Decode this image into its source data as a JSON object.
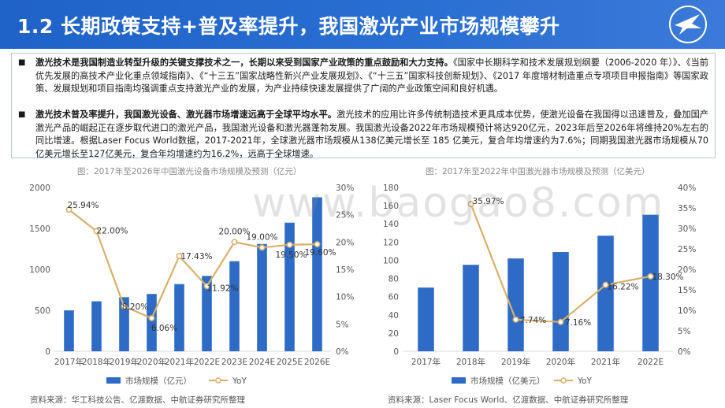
{
  "header": {
    "title": "1.2 长期政策支持+普及率提升，我国激光产业市场规模攀升",
    "logo_text": "AVIC"
  },
  "text": {
    "p1_bold": "激光技术是我国制造业转型升级的关键支撑技术之一，长期以来受到国家产业政策的重点鼓励和大力支持。",
    "p1_rest": "《国家中长期科学和技术发展规划纲要（2006-2020 年）》、《当前优先发展的高技术产业化重点领域指南》、《“十三五”国家战略性新兴产业发展规划》、《“十三五”国家科技创新规划》、《2017 年度增材制造重点专项项目申报指南》等国家政策、发展规划和项目指南均强调重点支持激光产业的发展，为产业持续快速发展提供了广阔的产业政策空间和良好机遇。",
    "p2_bold": "激光技术普及率提升，我国激光设备、激光器市场增速远高于全球平均水平。",
    "p2_rest": "激光技术的应用比许多传统制造技术更具成本优势，使激光设备在我国得以迅速普及，叠加国产激光产品的崛起正在逐步取代进口的激光产品，我国激光设备和激光器蓬勃发展。我国激光设备2022年市场规模预计将达920亿元，2023年后至2026年将维持20%左右的同比增速。根据Laser Focus World数据，2017-2021年，全球激光器市场规模从138亿美元增长至 185 亿美元，复合年均增速约为7.6%；同期我国激光器市场规模从70亿美元增长至127亿美元，复合年均增速约为16.2%，远高于全球增速。",
    "bullet": "■"
  },
  "watermark": "www.baogao8.com",
  "charts": {
    "left": {
      "title": "图：2017年至2026年中国激光设备市场规模及预测（亿元）",
      "source": "资料来源：华工科技公告、亿渡数据、中航证券研究所整理"
    },
    "right": {
      "title": "图：2017年至2022年中国激光器市场规模及预测（亿美元）",
      "source": "资料来源：Laser Focus World、亿渡数据、中航证券研究所整理"
    }
  },
  "colors": {
    "bar": "#2e6bc6",
    "line": "#d8b06a",
    "marker_fill": "#ffffff",
    "header": "#2a6fd3"
  },
  "chart_data": [
    {
      "type": "bar",
      "categories": [
        "2017年",
        "2018年",
        "2019年",
        "2020年",
        "2021年",
        "2022E",
        "2023E",
        "2024E",
        "2025E",
        "2026E"
      ],
      "series": [
        {
          "name": "市场规模（亿元）",
          "type": "bar",
          "axis": "left",
          "values": [
            500,
            610,
            660,
            700,
            820,
            920,
            1100,
            1310,
            1570,
            1880
          ]
        },
        {
          "name": "YoY",
          "type": "line",
          "axis": "right",
          "values": [
            25.94,
            22.0,
            8.2,
            6.06,
            17.43,
            11.92,
            20.0,
            19.0,
            19.5,
            19.6
          ],
          "labels": [
            "25.94%",
            "22.00%",
            "8.20%",
            "6.06%",
            "17.43%",
            "11.92%",
            "20.00%",
            "19.00%",
            "19.50%",
            "19.60%"
          ]
        }
      ],
      "ylim": [
        0,
        2000
      ],
      "yticks": [
        0,
        500,
        1000,
        1500,
        2000
      ],
      "y2lim": [
        0,
        30
      ],
      "y2ticks": [
        "0%",
        "5%",
        "10%",
        "15%",
        "20%",
        "25%",
        "30%"
      ],
      "legend": [
        "市场规模（亿元）",
        "YoY"
      ],
      "legend_position": "bottom"
    },
    {
      "type": "bar",
      "categories": [
        "2017年",
        "2018年",
        "2019年",
        "2020年",
        "2021年",
        "2022E"
      ],
      "series": [
        {
          "name": "市场规模（亿美元）",
          "type": "bar",
          "axis": "left",
          "values": [
            70,
            95,
            102,
            109,
            127,
            150
          ]
        },
        {
          "name": "YoY",
          "type": "line",
          "axis": "right",
          "values": [
            null,
            35.97,
            7.74,
            7.16,
            16.22,
            18.3
          ],
          "labels": [
            "",
            "35.97%",
            "7.74%",
            "7.16%",
            "16.22%",
            "18.30%"
          ]
        }
      ],
      "ylim": [
        0,
        180
      ],
      "yticks": [
        0,
        20,
        40,
        60,
        80,
        100,
        120,
        140,
        160,
        180
      ],
      "y2lim": [
        0,
        40
      ],
      "y2ticks": [
        "0%",
        "5%",
        "10%",
        "15%",
        "20%",
        "25%",
        "30%",
        "35%",
        "40%"
      ],
      "legend": [
        "市场规模（亿美元）",
        "YoY"
      ],
      "legend_position": "bottom"
    }
  ]
}
